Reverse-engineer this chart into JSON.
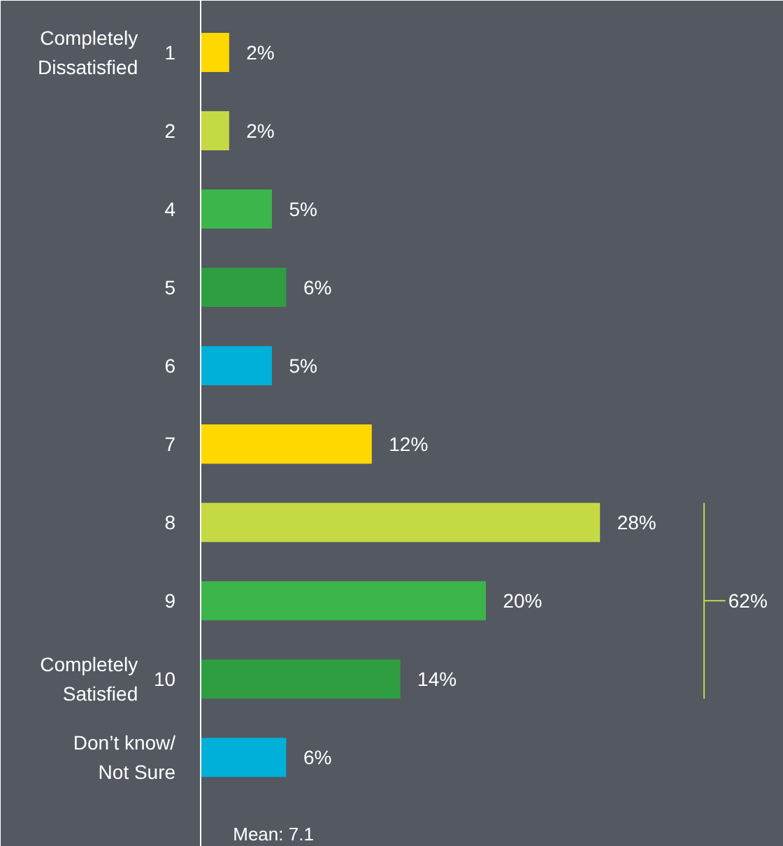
{
  "chart_data": {
    "type": "bar",
    "orientation": "horizontal",
    "categories": [
      "1",
      "2",
      "4",
      "5",
      "6",
      "7",
      "8",
      "9",
      "10",
      "Don’t know/\nNot Sure"
    ],
    "values": [
      2,
      2,
      5,
      6,
      5,
      12,
      28,
      20,
      14,
      6
    ],
    "colors": [
      "#ffd800",
      "#c5d944",
      "#3cb54a",
      "#2e9e41",
      "#00b0d8",
      "#ffd800",
      "#c5d944",
      "#3cb54a",
      "#2e9e41",
      "#00b0d8"
    ],
    "value_labels": [
      "2%",
      "2%",
      "5%",
      "6%",
      "5%",
      "12%",
      "28%",
      "20%",
      "14%",
      "6%"
    ],
    "annotations": [
      "Completely\nDissatisfied",
      "Completely\nSatisfied",
      "62%",
      "Mean: 7.1"
    ],
    "grid": false
  }
}
